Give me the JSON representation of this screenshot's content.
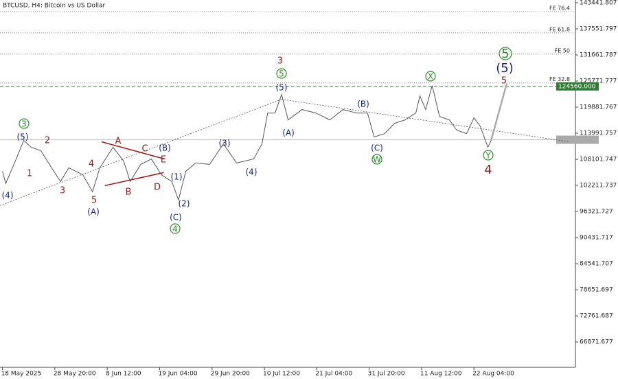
{
  "chart_data": {
    "type": "line",
    "title": "BTCUSD, H4:  Bitcoin vs US Dollar",
    "xlim": [
      -3,
      700
    ],
    "xticks": [
      {
        "value": 0,
        "label": "18 May 2025"
      },
      {
        "value": 64,
        "label": "28 May 20:00"
      },
      {
        "value": 128,
        "label": "8 Jun 12:00"
      },
      {
        "value": 192,
        "label": "19 Jun 04:00"
      },
      {
        "value": 256,
        "label": "29 Jun 20:00"
      },
      {
        "value": 320,
        "label": "10 Jul 12:00"
      },
      {
        "value": 384,
        "label": "21 Jul 04:00"
      },
      {
        "value": 448,
        "label": "31 Jul 20:00"
      },
      {
        "value": 512,
        "label": "11 Aug 12:00"
      },
      {
        "value": 576,
        "label": "22 Aug 04:00"
      }
    ],
    "ylim": [
      61150,
      144060
    ],
    "yticks": [
      143441.807,
      137551.797,
      131661.787,
      125771.777,
      119881.767,
      113991.757,
      108101.747,
      102211.737,
      96321.727,
      90431.717,
      84541.707,
      78651.697,
      72761.687,
      66871.677
    ],
    "series": [
      {
        "color": "#555555",
        "x": [
          0,
          4,
          14,
          26,
          35,
          47,
          60,
          71,
          81,
          98,
          110,
          119,
          135,
          148,
          156,
          169,
          182,
          194,
          207,
          215,
          224,
          236,
          253,
          270,
          286,
          307,
          317,
          324,
          333,
          341,
          349,
          366,
          383,
          400,
          416,
          433,
          446,
          454,
          467,
          479,
          492,
          505,
          510,
          517,
          525,
          534,
          546,
          555,
          567,
          576,
          584,
          593,
          597
        ],
        "values": [
          105410,
          102630,
          106960,
          112370,
          110820,
          110050,
          106180,
          103090,
          106180,
          104640,
          100770,
          106180,
          110820,
          107730,
          103090,
          106960,
          108190,
          104640,
          103090,
          98920,
          105410,
          107270,
          106960,
          111590,
          107270,
          108190,
          111590,
          118550,
          118550,
          122730,
          117000,
          119320,
          118550,
          117000,
          119320,
          118550,
          118550,
          113140,
          113910,
          116230,
          117000,
          118550,
          122420,
          119320,
          124740,
          117780,
          117000,
          114690,
          113910,
          117470,
          115460,
          110820,
          112370
        ]
      },
      {
        "color": "#aaaaaa",
        "x": [
          597,
          616
        ],
        "values": [
          112370,
          125200
        ]
      }
    ],
    "levels": [
      {
        "label": "FE 76.4",
        "value": 141430
      },
      {
        "label": "FE 61.8",
        "value": 136640
      },
      {
        "label": "FE 50",
        "value": 131850
      },
      {
        "label": "FE 32.8",
        "value": 125350
      }
    ],
    "support_level": {
      "value": 124560,
      "label": "124560.000",
      "color": "#2e7d32"
    },
    "current_price": 112520,
    "trend_lines": [
      {
        "color": "#555555",
        "x": [
          -3,
          341
        ],
        "values": [
          97680,
          121640
        ]
      },
      {
        "color": "#555555",
        "x": [
          341,
          693
        ],
        "values": [
          121640,
          112060
        ]
      },
      {
        "color": "#a01c1c",
        "x": [
          121,
          198
        ],
        "values": [
          112060,
          108190
        ]
      },
      {
        "color": "#a01c1c",
        "x": [
          125,
          197
        ],
        "values": [
          102160,
          105100
        ]
      }
    ],
    "wave_labels": [
      "3",
      "5",
      "W",
      "X",
      "Y",
      "4",
      "5",
      "(5)",
      "(4)",
      "(A)",
      "(B)",
      "(1)",
      "(2)",
      "(C)",
      "(3)",
      "(4)",
      "(5)",
      "(A)",
      "(B)",
      "(C)",
      "(5)",
      "2",
      "1",
      "3",
      "4",
      "5",
      "A",
      "C",
      "E",
      "B",
      "D",
      "3",
      "5",
      "4"
    ]
  }
}
